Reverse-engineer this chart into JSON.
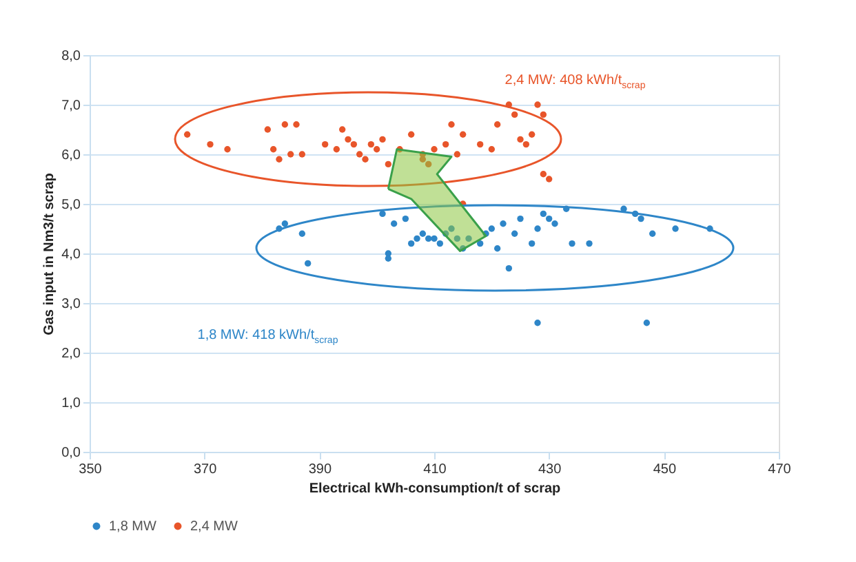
{
  "chart_data": {
    "type": "scatter",
    "xlabel": "Electrical kWh-consumption/t of scrap",
    "ylabel": "Gas input in Nm3/t scrap",
    "xlim": [
      350,
      470
    ],
    "xticks": [
      350,
      370,
      390,
      410,
      430,
      450,
      470
    ],
    "ylim": [
      0,
      8
    ],
    "yticks": [
      {
        "value": 0,
        "label": "0,0"
      },
      {
        "value": 1,
        "label": "1,0"
      },
      {
        "value": 2,
        "label": "2,0"
      },
      {
        "value": 3,
        "label": "3,0"
      },
      {
        "value": 4,
        "label": "4,0"
      },
      {
        "value": 5,
        "label": "5,0"
      },
      {
        "value": 6,
        "label": "6,0"
      },
      {
        "value": 7,
        "label": "7,0"
      },
      {
        "value": 8,
        "label": "8,0"
      }
    ],
    "grid": "y",
    "legend": "bottom",
    "marker": "circle",
    "annotations": [
      "2,4 MW: 408 kWh/t$_{scrap}$",
      "1,8 MW: 418 kWh/t$_{scrap}$"
    ],
    "series": [
      {
        "name": "1,8 MW",
        "color": "#2e86c8",
        "x": [
          383,
          384,
          387,
          388,
          401,
          402,
          402,
          403,
          405,
          406,
          407,
          408,
          409,
          410,
          411,
          412,
          413,
          414,
          415,
          416,
          418,
          419,
          420,
          421,
          422,
          423,
          424,
          425,
          427,
          428,
          429,
          430,
          431,
          434,
          443,
          445,
          446,
          448,
          452,
          458,
          428,
          447,
          437,
          433
        ],
        "values": [
          4.5,
          4.6,
          4.4,
          3.8,
          4.8,
          4.0,
          3.9,
          4.6,
          4.7,
          4.2,
          4.3,
          4.4,
          4.3,
          4.3,
          4.2,
          4.4,
          4.5,
          4.3,
          4.1,
          4.3,
          4.2,
          4.4,
          4.5,
          4.1,
          4.6,
          3.7,
          4.4,
          4.7,
          4.2,
          4.5,
          4.8,
          4.7,
          4.6,
          4.2,
          4.9,
          4.8,
          4.7,
          4.4,
          4.5,
          4.5,
          2.6,
          2.6,
          4.2,
          4.9
        ]
      },
      {
        "name": "2,4 MW",
        "color": "#e8552a",
        "x": [
          367,
          371,
          374,
          381,
          382,
          383,
          384,
          385,
          386,
          387,
          391,
          393,
          394,
          395,
          396,
          397,
          398,
          399,
          400,
          401,
          402,
          404,
          406,
          408,
          408,
          410,
          412,
          413,
          414,
          415,
          418,
          420,
          421,
          423,
          424,
          425,
          426,
          427,
          428,
          429,
          429,
          430,
          409,
          415
        ],
        "values": [
          6.4,
          6.2,
          6.1,
          6.5,
          6.1,
          5.9,
          6.6,
          6.0,
          6.6,
          6.0,
          6.2,
          6.1,
          6.5,
          6.3,
          6.2,
          6.0,
          5.9,
          6.2,
          6.1,
          6.3,
          5.8,
          6.1,
          6.4,
          6.0,
          5.9,
          6.1,
          6.2,
          6.6,
          6.0,
          6.4,
          6.2,
          6.1,
          6.6,
          7.0,
          6.8,
          6.3,
          6.2,
          6.4,
          7.0,
          6.8,
          5.6,
          5.5,
          5.8,
          5.0
        ]
      }
    ]
  }
}
